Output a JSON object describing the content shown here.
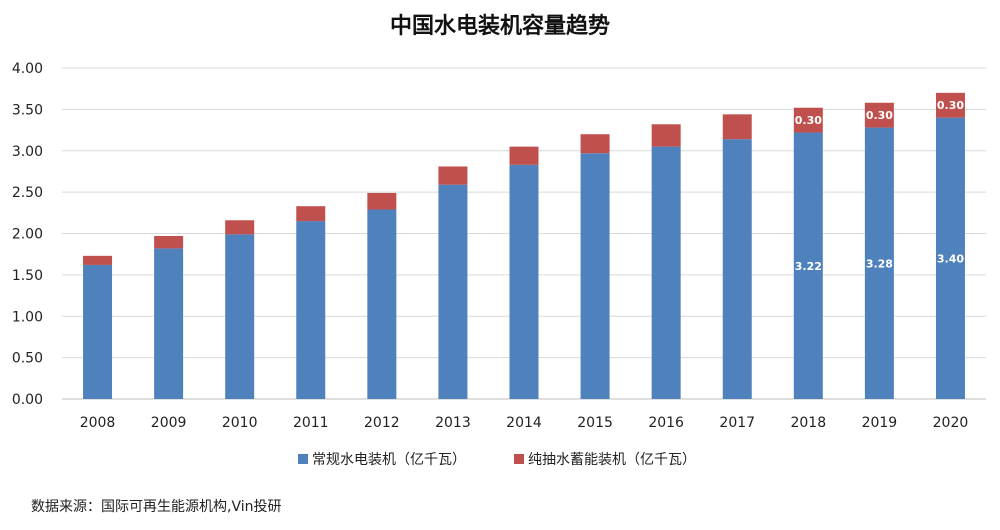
{
  "chart_data": {
    "type": "bar",
    "stacked": true,
    "title": "中国水电装机容量趋势",
    "categories": [
      "2008",
      "2009",
      "2010",
      "2011",
      "2012",
      "2013",
      "2014",
      "2015",
      "2016",
      "2017",
      "2018",
      "2019",
      "2020"
    ],
    "series": [
      {
        "name": "常规水电装机（亿千瓦）",
        "color": "#4f81bd",
        "values": [
          1.62,
          1.82,
          1.99,
          2.15,
          2.29,
          2.59,
          2.83,
          2.97,
          3.05,
          3.14,
          3.22,
          3.28,
          3.4
        ],
        "data_labels": [
          null,
          null,
          null,
          null,
          null,
          null,
          null,
          null,
          null,
          null,
          "3.22",
          "3.28",
          "3.40"
        ]
      },
      {
        "name": "纯抽水蓄能装机（亿千瓦）",
        "color": "#c0504d",
        "values": [
          0.11,
          0.15,
          0.17,
          0.18,
          0.2,
          0.22,
          0.22,
          0.23,
          0.27,
          0.3,
          0.3,
          0.3,
          0.3
        ],
        "data_labels": [
          null,
          null,
          null,
          null,
          null,
          null,
          null,
          null,
          null,
          null,
          "0.30",
          "0.30",
          "0.30"
        ]
      }
    ],
    "ylim": [
      0,
      4
    ],
    "yticks": [
      "0.00",
      "0.50",
      "1.00",
      "1.50",
      "2.00",
      "2.50",
      "3.00",
      "3.50",
      "4.00"
    ],
    "xlabel": "",
    "ylabel": "",
    "grid": true,
    "legend_position": "bottom"
  },
  "source_note": "数据来源：国际可再生能源机构,Vin投研"
}
